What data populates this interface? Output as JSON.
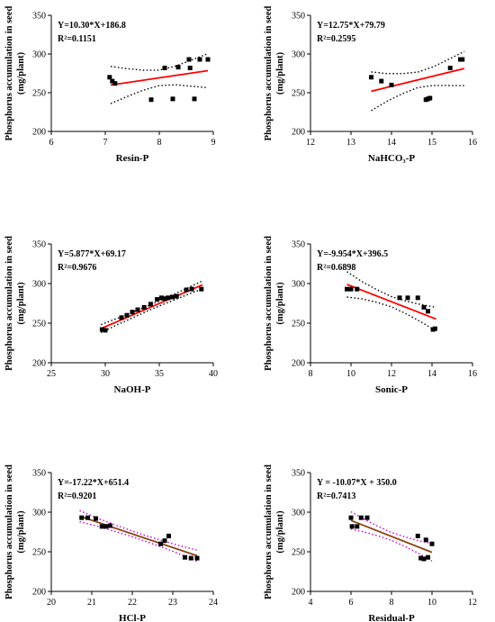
{
  "figure": {
    "y_axis_label_line1": "Phosphorus accumulation in seed",
    "y_axis_label_line2": "(mg/plant)"
  },
  "chart_data": [
    {
      "type": "scatter",
      "xlabel": "Resin-P",
      "xlim": [
        6,
        9
      ],
      "xticks": [
        6,
        7,
        8,
        9
      ],
      "ylim": [
        200,
        350
      ],
      "yticks": [
        200,
        250,
        300,
        350
      ],
      "equation": "Y=10.30*X+186.8",
      "r2": "R²=0.1151",
      "fit": {
        "slope": 10.3,
        "intercept": 186.8,
        "x_range": [
          7.1,
          8.9
        ],
        "line_color": "#ff0000",
        "ci_color": "#000000"
      },
      "ci_offsets": [
        24,
        18,
        13,
        10,
        12,
        17,
        22
      ],
      "points": [
        [
          7.08,
          270
        ],
        [
          7.13,
          265
        ],
        [
          7.18,
          262
        ],
        [
          7.85,
          241
        ],
        [
          8.1,
          282
        ],
        [
          8.25,
          242
        ],
        [
          8.35,
          283
        ],
        [
          8.55,
          293
        ],
        [
          8.57,
          282
        ],
        [
          8.65,
          242
        ],
        [
          8.75,
          293
        ],
        [
          8.9,
          293
        ]
      ]
    },
    {
      "type": "scatter",
      "xlabel": "NaHCO₃-P",
      "xlim": [
        12,
        16
      ],
      "xticks": [
        12,
        13,
        14,
        15,
        16
      ],
      "ylim": [
        200,
        350
      ],
      "yticks": [
        200,
        250,
        300,
        350
      ],
      "equation": "Y=12.75*X+79.79",
      "r2": "R²=0.2595",
      "fit": {
        "slope": 12.75,
        "intercept": 79.79,
        "x_range": [
          13.5,
          15.8
        ],
        "line_color": "#ff0000",
        "ci_color": "#000000"
      },
      "ci_offsets": [
        25,
        18,
        13,
        10,
        12,
        17,
        22
      ],
      "points": [
        [
          13.5,
          270
        ],
        [
          13.75,
          265
        ],
        [
          14.0,
          260
        ],
        [
          14.85,
          241
        ],
        [
          14.9,
          242
        ],
        [
          14.95,
          243
        ],
        [
          15.45,
          282
        ],
        [
          15.7,
          293
        ],
        [
          15.75,
          293
        ]
      ]
    },
    {
      "type": "scatter",
      "xlabel": "NaOH-P",
      "xlim": [
        25,
        40
      ],
      "xticks": [
        25,
        30,
        35,
        40
      ],
      "ylim": [
        200,
        350
      ],
      "yticks": [
        200,
        250,
        300,
        350
      ],
      "equation": "Y=5.877*X+69.17",
      "r2": "R²=0.9676",
      "fit": {
        "slope": 5.877,
        "intercept": 69.17,
        "x_range": [
          29.6,
          39
        ],
        "line_color": "#ff0000",
        "ci_color": "#000000"
      },
      "ci_offsets": [
        5,
        4,
        3.5,
        3,
        3.5,
        4,
        5
      ],
      "points": [
        [
          29.7,
          242
        ],
        [
          30.0,
          241
        ],
        [
          31.5,
          257
        ],
        [
          32.0,
          260
        ],
        [
          32.5,
          264
        ],
        [
          33.0,
          267
        ],
        [
          33.6,
          270
        ],
        [
          34.2,
          274
        ],
        [
          34.8,
          280
        ],
        [
          35.2,
          282
        ],
        [
          35.5,
          281
        ],
        [
          35.8,
          282
        ],
        [
          36.2,
          283
        ],
        [
          36.6,
          284
        ],
        [
          37.5,
          292
        ],
        [
          38.0,
          293
        ],
        [
          38.9,
          293
        ]
      ]
    },
    {
      "type": "scatter",
      "xlabel": "Sonic-P",
      "xlim": [
        8,
        16
      ],
      "xticks": [
        8,
        10,
        12,
        14,
        16
      ],
      "ylim": [
        200,
        350
      ],
      "yticks": [
        200,
        250,
        300,
        350
      ],
      "equation": "Y=-9.954*X+396.5",
      "r2": "R²=0.6898",
      "fit": {
        "slope": -9.954,
        "intercept": 396.5,
        "x_range": [
          9.8,
          14.2
        ],
        "line_color": "#ff0000",
        "ci_color": "#000000"
      },
      "ci_offsets": [
        16,
        11,
        8,
        6.5,
        8,
        11,
        15
      ],
      "points": [
        [
          9.8,
          293
        ],
        [
          10.0,
          293
        ],
        [
          10.3,
          293
        ],
        [
          12.4,
          282
        ],
        [
          12.8,
          282
        ],
        [
          13.3,
          282
        ],
        [
          13.6,
          270
        ],
        [
          13.8,
          265
        ],
        [
          14.05,
          242
        ],
        [
          14.15,
          243
        ]
      ]
    },
    {
      "type": "scatter",
      "xlabel": "HCl-P",
      "xlim": [
        20,
        24
      ],
      "xticks": [
        20,
        21,
        22,
        23,
        24
      ],
      "ylim": [
        200,
        350
      ],
      "yticks": [
        200,
        250,
        300,
        350
      ],
      "equation": "Y=-17.22*X+651.4",
      "r2": "R²=0.9201",
      "fit": {
        "slope": -17.22,
        "intercept": 651.4,
        "x_range": [
          20.7,
          23.6
        ],
        "line_color": "#8b4513",
        "ci_color": "#cc00cc"
      },
      "ci_offsets": [
        7,
        5,
        4,
        3.5,
        4,
        5,
        7
      ],
      "points": [
        [
          20.75,
          293
        ],
        [
          20.9,
          293
        ],
        [
          21.1,
          292
        ],
        [
          21.25,
          282
        ],
        [
          21.35,
          282
        ],
        [
          21.45,
          283
        ],
        [
          22.7,
          260
        ],
        [
          22.8,
          264
        ],
        [
          22.9,
          270
        ],
        [
          23.3,
          243
        ],
        [
          23.45,
          242
        ],
        [
          23.6,
          242
        ]
      ]
    },
    {
      "type": "scatter",
      "xlabel": "Residual-P",
      "xlim": [
        4,
        12
      ],
      "xticks": [
        4,
        6,
        8,
        10,
        12
      ],
      "ylim": [
        200,
        350
      ],
      "yticks": [
        200,
        250,
        300,
        350
      ],
      "equation": "Y = -10.07*X + 350.0",
      "r2": "R²=0.7413",
      "fit": {
        "slope": -10.07,
        "intercept": 350.0,
        "x_range": [
          6.0,
          10.0
        ],
        "line_color": "#8b4513",
        "ci_color": "#cc00cc"
      },
      "ci_offsets": [
        11,
        8,
        6,
        5,
        6,
        8,
        11
      ],
      "points": [
        [
          6.0,
          293
        ],
        [
          6.05,
          282
        ],
        [
          6.3,
          282
        ],
        [
          6.5,
          293
        ],
        [
          6.8,
          293
        ],
        [
          9.3,
          270
        ],
        [
          9.45,
          242
        ],
        [
          9.6,
          241
        ],
        [
          9.7,
          265
        ],
        [
          9.8,
          243
        ],
        [
          10.0,
          260
        ]
      ]
    }
  ]
}
